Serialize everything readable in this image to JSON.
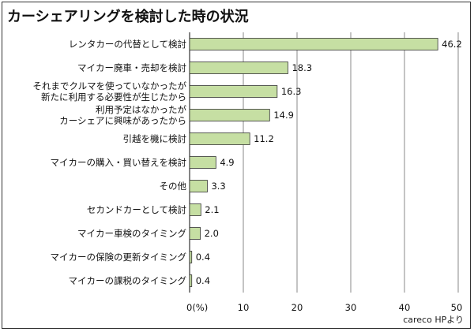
{
  "chart_data": {
    "type": "bar",
    "orientation": "horizontal",
    "title": "カーシェアリングを検討した時の状況",
    "categories": [
      [
        "レンタカーの代替として検討"
      ],
      [
        "マイカー廃車・売却を検討"
      ],
      [
        "それまでクルマを使っていなかったが",
        "新たに利用する必要性が生じたから"
      ],
      [
        "利用予定はなかったが",
        "カーシェアに興味があったから"
      ],
      [
        "引越を機に検討"
      ],
      [
        "マイカーの購入・買い替えを検討"
      ],
      [
        "その他"
      ],
      [
        "セカンドカーとして検討"
      ],
      [
        "マイカー車検のタイミング"
      ],
      [
        "マイカーの保険の更新タイミング"
      ],
      [
        "マイカーの課税のタイミング"
      ]
    ],
    "values": [
      46.2,
      18.3,
      16.3,
      14.9,
      11.2,
      4.9,
      3.3,
      2.1,
      2.0,
      0.4,
      0.4
    ],
    "value_labels": [
      "46.2",
      "18.3",
      "16.3",
      "14.9",
      "11.2",
      "4.9",
      "3.3",
      "2.1",
      "2.0",
      "0.4",
      "0.4"
    ],
    "xlim": [
      0,
      50
    ],
    "x_ticks": [
      0,
      10,
      20,
      30,
      40,
      50
    ],
    "x_tick_labels": [
      "0(%)",
      "10",
      "20",
      "30",
      "40",
      "50"
    ],
    "xlabel": "",
    "ylabel": "",
    "grid": true,
    "bar_color": "#c6dfa3",
    "bar_edge_color": "#333333",
    "grid_color": "#888888",
    "source": "careco HPより"
  }
}
